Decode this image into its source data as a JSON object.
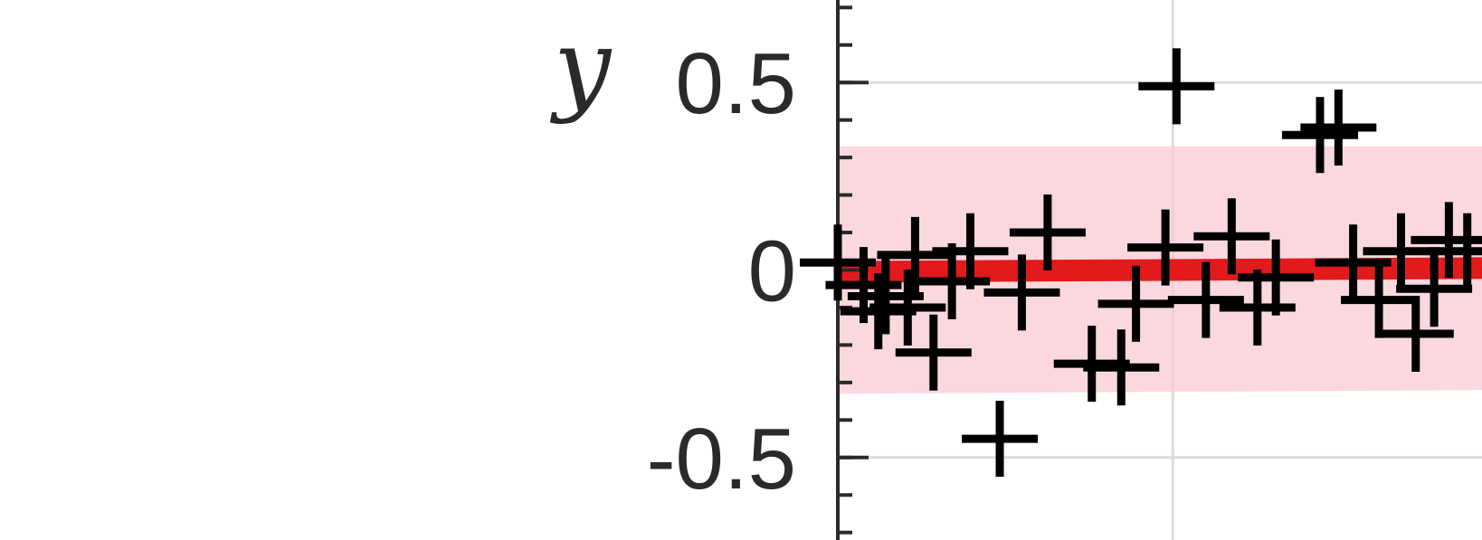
{
  "chart_data": {
    "type": "scatter",
    "xlabel": "",
    "ylabel": "y",
    "ylim": [
      -0.72,
      0.72
    ],
    "xlim": [
      0,
      1.75
    ],
    "y_ticks": [
      {
        "value": 0.5,
        "label": "0.5"
      },
      {
        "value": 0,
        "label": "0"
      },
      {
        "value": -0.5,
        "label": "-0.5"
      }
    ],
    "grid": true,
    "series": [
      {
        "marker": "plus",
        "color": "#000000",
        "points": [
          {
            "x": 0.0,
            "y": 0.02
          },
          {
            "x": 0.07,
            "y": -0.04
          },
          {
            "x": 0.11,
            "y": -0.11
          },
          {
            "x": 0.13,
            "y": -0.07
          },
          {
            "x": 0.19,
            "y": -0.1
          },
          {
            "x": 0.21,
            "y": 0.04
          },
          {
            "x": 0.26,
            "y": -0.22
          },
          {
            "x": 0.31,
            "y": -0.03
          },
          {
            "x": 0.36,
            "y": 0.05
          },
          {
            "x": 0.44,
            "y": -0.45
          },
          {
            "x": 0.5,
            "y": -0.06
          },
          {
            "x": 0.57,
            "y": 0.1
          },
          {
            "x": 0.69,
            "y": -0.25
          },
          {
            "x": 0.77,
            "y": -0.26
          },
          {
            "x": 0.81,
            "y": -0.09
          },
          {
            "x": 0.89,
            "y": 0.06
          },
          {
            "x": 0.92,
            "y": 0.49
          },
          {
            "x": 1.0,
            "y": -0.08
          },
          {
            "x": 1.07,
            "y": 0.09
          },
          {
            "x": 1.14,
            "y": -0.1
          },
          {
            "x": 1.19,
            "y": -0.02
          },
          {
            "x": 1.31,
            "y": 0.36
          },
          {
            "x": 1.36,
            "y": 0.38
          },
          {
            "x": 1.4,
            "y": 0.02
          },
          {
            "x": 1.47,
            "y": -0.08
          },
          {
            "x": 1.53,
            "y": 0.05
          },
          {
            "x": 1.57,
            "y": -0.17
          },
          {
            "x": 1.62,
            "y": -0.05
          },
          {
            "x": 1.66,
            "y": 0.08
          },
          {
            "x": 1.71,
            "y": 0.05
          }
        ]
      },
      {
        "marker": "line",
        "color": "#e31a1c",
        "points": [
          {
            "x": 0.0,
            "y": -0.005
          },
          {
            "x": 1.75,
            "y": 0.005
          }
        ]
      }
    ],
    "band": {
      "color": "#f8c8d0",
      "upper": [
        {
          "x": 0.0,
          "y": 0.33
        },
        {
          "x": 1.75,
          "y": 0.33
        }
      ],
      "lower": [
        {
          "x": 0.0,
          "y": -0.33
        },
        {
          "x": 1.75,
          "y": -0.32
        }
      ]
    },
    "x_gridlines": [
      0.91
    ]
  }
}
